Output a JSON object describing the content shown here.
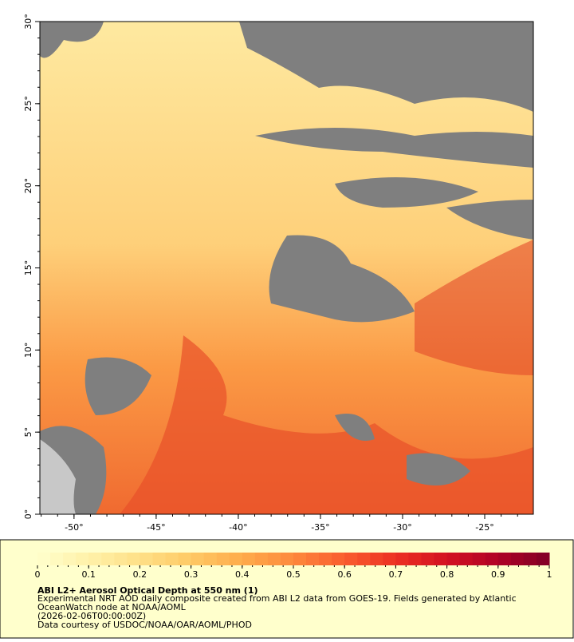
{
  "map": {
    "xlim": [
      -52.08,
      -22.04
    ],
    "ylim": [
      0,
      30
    ],
    "xticks": [
      {
        "value": -50,
        "label": "-50°"
      },
      {
        "value": -45,
        "label": "-45°"
      },
      {
        "value": -40,
        "label": "-40°"
      },
      {
        "value": -35,
        "label": "-35°"
      },
      {
        "value": -30,
        "label": "-30°"
      },
      {
        "value": -25,
        "label": "-25°"
      }
    ],
    "yticks": [
      {
        "value": 0,
        "label": "0°"
      },
      {
        "value": 5,
        "label": "5°"
      },
      {
        "value": 10,
        "label": "10°"
      },
      {
        "value": 15,
        "label": "15°"
      },
      {
        "value": 20,
        "label": "20°"
      },
      {
        "value": 25,
        "label": "25°"
      },
      {
        "value": 30,
        "label": "30°"
      }
    ]
  },
  "colorbar": {
    "range": [
      0,
      1
    ],
    "ticks": [
      0,
      0.1,
      0.2,
      0.3,
      0.4,
      0.5,
      0.6,
      0.7,
      0.8,
      0.9,
      1
    ],
    "colors": [
      "#ffffcc",
      "#fff1a9",
      "#fee087",
      "#fec965",
      "#feab4b",
      "#fd893c",
      "#fa5c2e",
      "#ec3023",
      "#d31121",
      "#af0225",
      "#800026"
    ]
  },
  "legend": {
    "title": "ABI L2+ Aerosol Optical Depth at 550 nm (1)",
    "lines": [
      "Experimental NRT AOD daily composite created from ABI L2 data from GOES-19. Fields generated by Atlantic",
      "OceanWatch node at NOAA/AOML",
      "(2026-02-06T00:00:00Z)",
      "Data courtesy of USDOC/NOAA/OAR/AOML/PHOD"
    ]
  }
}
